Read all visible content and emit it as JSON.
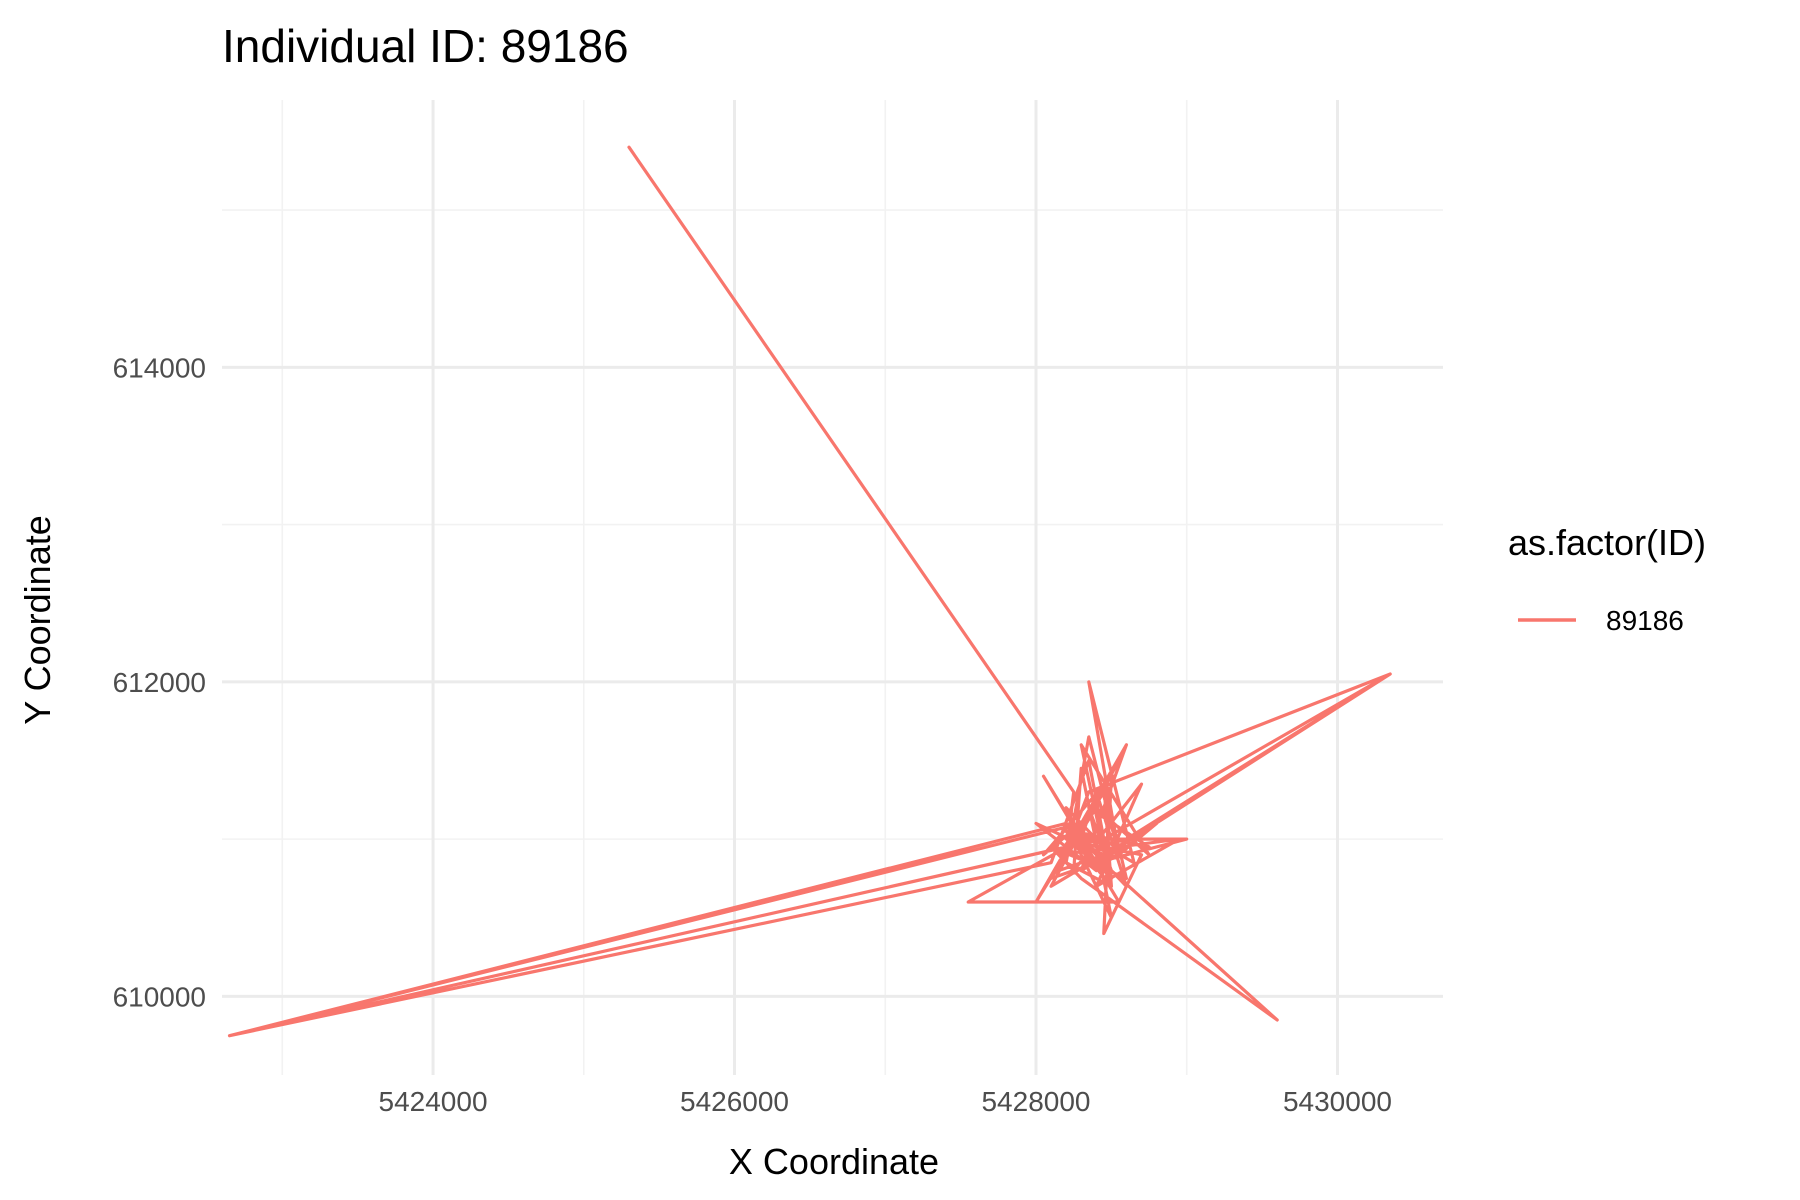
{
  "chart_data": {
    "type": "line",
    "title": "Individual ID: 89186",
    "xlabel": "X Coordinate",
    "ylabel": "Y Coordinate",
    "xlim": [
      5422600,
      5430700
    ],
    "ylim": [
      609500,
      615700
    ],
    "x_ticks": [
      5424000,
      5426000,
      5428000,
      5430000
    ],
    "x_tick_labels": [
      "5424000",
      "5426000",
      "5428000",
      "5430000"
    ],
    "y_ticks": [
      610000,
      612000,
      614000
    ],
    "y_tick_labels": [
      "610000",
      "612000",
      "614000"
    ],
    "grid": true,
    "legend": {
      "title": "as.factor(ID)",
      "position": "right"
    },
    "series": [
      {
        "name": "89186",
        "color": "#F8766D",
        "x": [
          5425300,
          5428250,
          5428200,
          5428550,
          5428100,
          5428800,
          5428300,
          5428600,
          5428000,
          5428450,
          5428150,
          5428950,
          5428400,
          5428700,
          5428250,
          5428300,
          5428500,
          5428200,
          5428650,
          5428350,
          5428550,
          5428100,
          5428400,
          5428750,
          5428300,
          5428500,
          5428200,
          5428600,
          5428150,
          5428350,
          5430350,
          5428450,
          5428200,
          5422650,
          5428300,
          5428050,
          5428500,
          5428450,
          5428700,
          5428200,
          5429000,
          5428400,
          5428050,
          5428550,
          5427550,
          5428300,
          5428400,
          5428600,
          5428200,
          5422650,
          5428100,
          5428350,
          5428500,
          5428250,
          5428450,
          5428000,
          5428400,
          5428800,
          5428550,
          5428350,
          5428200,
          5428500,
          5428450,
          5428600,
          5428100,
          5428300,
          5429600,
          5428500,
          5428350,
          5428750,
          5428250,
          5428550,
          5430350,
          5428600,
          5428400,
          5428200,
          5428500,
          5428300
        ],
        "y": [
          615400,
          611300,
          610900,
          611500,
          610700,
          611100,
          610800,
          611600,
          610600,
          611300,
          610900,
          611000,
          610700,
          611350,
          610800,
          611450,
          610500,
          611100,
          610850,
          612000,
          610900,
          610750,
          611200,
          610900,
          611600,
          610700,
          611050,
          610950,
          610800,
          611300,
          612050,
          611000,
          610950,
          609750,
          611100,
          610900,
          611400,
          610400,
          610900,
          611000,
          611000,
          610850,
          611400,
          610600,
          610600,
          611000,
          611300,
          610700,
          611100,
          609750,
          610850,
          611500,
          610750,
          611000,
          610900,
          611100,
          610800,
          611100,
          610900,
          611650,
          610850,
          610700,
          611350,
          610750,
          610950,
          610750,
          609850,
          610800,
          611200,
          610950,
          611050,
          610950,
          612050,
          611000,
          610800,
          611200,
          610900,
          611000
        ]
      }
    ]
  }
}
